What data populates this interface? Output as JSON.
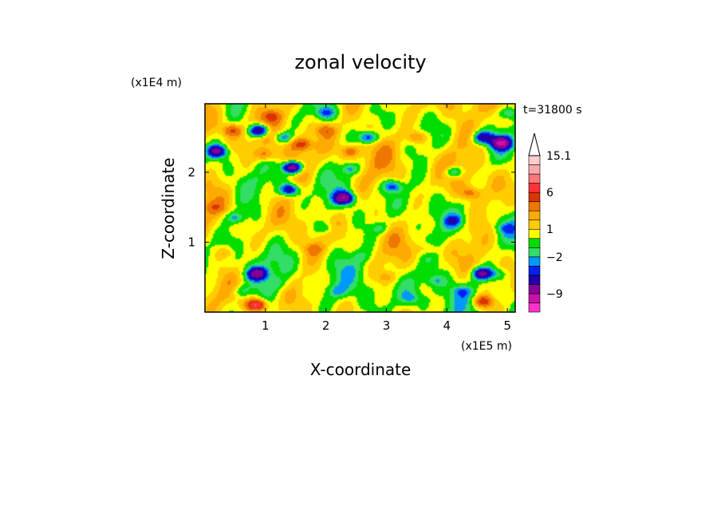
{
  "chart_data": {
    "type": "heatmap",
    "title": "zonal velocity",
    "xlabel": "X-coordinate",
    "ylabel": "Z-coordinate",
    "x_unit": "(x1E5 m)",
    "y_unit": "(x1E4 m)",
    "time_label": "t=31800 s",
    "xlim": [
      0,
      5.13
    ],
    "ylim": [
      0,
      2.98
    ],
    "xticks": [
      "1",
      "2",
      "3",
      "4",
      "5"
    ],
    "yticks": [
      "1",
      "2"
    ],
    "colorbar": {
      "levels": [
        -15,
        -12,
        -9,
        -6,
        -4,
        -3,
        -2,
        -1,
        0,
        1,
        2,
        3,
        4.5,
        6,
        8,
        10,
        12.5,
        15.1
      ],
      "colors": [
        "#ff33cc",
        "#cc11aa",
        "#880099",
        "#2200aa",
        "#0022ee",
        "#0099ff",
        "#33dd66",
        "#00dd00",
        "#ffff00",
        "#ffcc00",
        "#ffaa00",
        "#ee7700",
        "#dd3300",
        "#ff3333",
        "#ff7777",
        "#ffaaaa",
        "#ffcccc"
      ],
      "tick_labels": [
        {
          "text": "15.1",
          "value": 15.1
        },
        {
          "text": "6",
          "value": 6
        },
        {
          "text": "1",
          "value": 1
        },
        {
          "text": "−2",
          "value": -2
        },
        {
          "text": "−9",
          "value": -9
        }
      ]
    },
    "blobs": [
      {
        "x": 0.9,
        "z": 2.6,
        "v": -8
      },
      {
        "x": 0.2,
        "z": 2.3,
        "v": -7
      },
      {
        "x": 1.4,
        "z": 1.75,
        "v": -6
      },
      {
        "x": 1.3,
        "z": 2.5,
        "v": -4
      },
      {
        "x": 1.45,
        "z": 2.07,
        "v": -9
      },
      {
        "x": 2.3,
        "z": 1.63,
        "v": -8
      },
      {
        "x": 2.7,
        "z": 2.5,
        "v": -5
      },
      {
        "x": 3.1,
        "z": 1.8,
        "v": -4
      },
      {
        "x": 4.9,
        "z": 2.42,
        "v": -9
      },
      {
        "x": 4.6,
        "z": 2.5,
        "v": -6
      },
      {
        "x": 4.1,
        "z": 2.0,
        "v": -4
      },
      {
        "x": 0.5,
        "z": 1.35,
        "v": -3
      },
      {
        "x": 0.86,
        "z": 0.55,
        "v": -7
      },
      {
        "x": 4.58,
        "z": 0.55,
        "v": -7
      },
      {
        "x": 4.1,
        "z": 1.3,
        "v": -3
      },
      {
        "x": 0.45,
        "z": 2.6,
        "v": 4
      },
      {
        "x": 1.0,
        "z": 2.25,
        "v": 3
      },
      {
        "x": 1.6,
        "z": 2.4,
        "v": 4
      },
      {
        "x": 2.0,
        "z": 2.6,
        "v": 3
      },
      {
        "x": 2.4,
        "z": 2.3,
        "v": 3
      },
      {
        "x": 1.1,
        "z": 2.8,
        "v": 3
      },
      {
        "x": 3.5,
        "z": 2.5,
        "v": 3
      },
      {
        "x": 4.4,
        "z": 1.7,
        "v": 3
      },
      {
        "x": 0.15,
        "z": 1.5,
        "v": 2
      },
      {
        "x": 0.85,
        "z": 0.1,
        "v": 8
      },
      {
        "x": 4.6,
        "z": 0.15,
        "v": 5
      },
      {
        "x": 3.0,
        "z": 0.5,
        "v": 2
      },
      {
        "x": 1.8,
        "z": 0.9,
        "v": 2
      },
      {
        "x": 0.35,
        "z": 0.85,
        "v": 2
      },
      {
        "x": 3.7,
        "z": 0.9,
        "v": 2
      },
      {
        "x": 2.0,
        "z": 1.2,
        "v": -2
      },
      {
        "x": 2.9,
        "z": 1.2,
        "v": -2
      },
      {
        "x": 0.6,
        "z": 0.3,
        "v": -2
      },
      {
        "x": 3.4,
        "z": 0.2,
        "v": -2
      },
      {
        "x": 3.8,
        "z": 0.45,
        "v": -2
      },
      {
        "x": 2.2,
        "z": 0.3,
        "v": -2
      },
      {
        "x": 4.25,
        "z": 0.3,
        "v": -2
      },
      {
        "x": 1.2,
        "z": 0.4,
        "v": -1
      },
      {
        "x": 2.6,
        "z": 0.8,
        "v": -1
      },
      {
        "x": 4.95,
        "z": 1.2,
        "v": -2
      },
      {
        "x": 4.85,
        "z": 0.55,
        "v": -2
      },
      {
        "x": 5.0,
        "z": 2.85,
        "v": -3
      },
      {
        "x": 2.0,
        "z": 2.85,
        "v": -3
      },
      {
        "x": 2.4,
        "z": 2.05,
        "v": -3
      }
    ]
  }
}
